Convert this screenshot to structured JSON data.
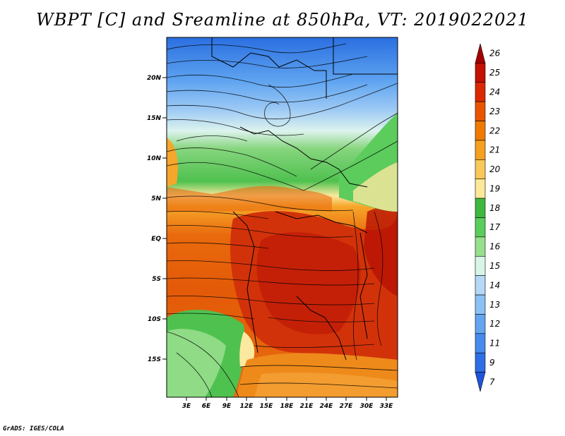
{
  "title": "WBPT [C] and Sreamline at 850hPa, VT: 2019022021",
  "credit": "GrADS: IGES/COLA",
  "map": {
    "lat_labels": [
      "20N",
      "15N",
      "10N",
      "5N",
      "EQ",
      "5S",
      "10S",
      "15S"
    ],
    "lon_labels": [
      "3E",
      "6E",
      "9E",
      "12E",
      "15E",
      "18E",
      "21E",
      "24E",
      "27E",
      "30E",
      "33E"
    ]
  },
  "colorbar": {
    "labels": [
      "26",
      "25",
      "24",
      "23",
      "22",
      "21",
      "20",
      "19",
      "18",
      "17",
      "16",
      "15",
      "14",
      "13",
      "12",
      "11",
      "9",
      "7"
    ],
    "colors": [
      "#a50000",
      "#c41000",
      "#dc2800",
      "#e85500",
      "#f07a00",
      "#f5a020",
      "#fac858",
      "#fde898",
      "#3fb83f",
      "#5acd5a",
      "#96e08c",
      "#d8f5e8",
      "#b4d8f5",
      "#8cc1f5",
      "#64a5f0",
      "#468cec",
      "#2d6ee6",
      "#1e55dc"
    ]
  }
}
